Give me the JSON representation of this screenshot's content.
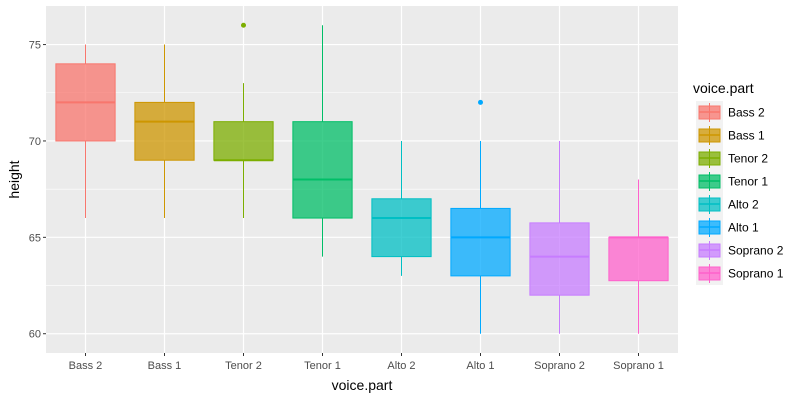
{
  "chart_data": {
    "type": "boxplot",
    "title": "",
    "xlabel": "voice.part",
    "ylabel": "height",
    "ylim": [
      59,
      77
    ],
    "yticks": [
      60,
      65,
      70,
      75
    ],
    "grid": true,
    "legend": {
      "title": "voice.part",
      "position": "right"
    },
    "categories": [
      "Bass 2",
      "Bass 1",
      "Tenor 2",
      "Tenor 1",
      "Alto 2",
      "Alto 1",
      "Soprano 2",
      "Soprano 1"
    ],
    "colors": [
      "#F8766D",
      "#CD9600",
      "#7CAE00",
      "#00BE67",
      "#00BFC4",
      "#00A9FF",
      "#C77CFF",
      "#FF61CC"
    ],
    "boxes": [
      {
        "min": 66,
        "q1": 70,
        "median": 72,
        "q3": 74,
        "max": 75,
        "outliers": []
      },
      {
        "min": 66,
        "q1": 69,
        "median": 71,
        "q3": 72,
        "max": 75,
        "outliers": []
      },
      {
        "min": 66,
        "q1": 69,
        "median": 69,
        "q3": 71,
        "max": 73,
        "outliers": [
          76
        ]
      },
      {
        "min": 64,
        "q1": 66,
        "median": 68,
        "q3": 71,
        "max": 76,
        "outliers": []
      },
      {
        "min": 63,
        "q1": 64,
        "median": 66,
        "q3": 67,
        "max": 70,
        "outliers": []
      },
      {
        "min": 60,
        "q1": 63,
        "median": 65,
        "q3": 66.5,
        "max": 70,
        "outliers": [
          72
        ]
      },
      {
        "min": 60,
        "q1": 62,
        "median": 64,
        "q3": 65.75,
        "max": 70,
        "outliers": []
      },
      {
        "min": 60,
        "q1": 62.75,
        "median": 65,
        "q3": 65,
        "max": 68,
        "outliers": []
      }
    ]
  }
}
